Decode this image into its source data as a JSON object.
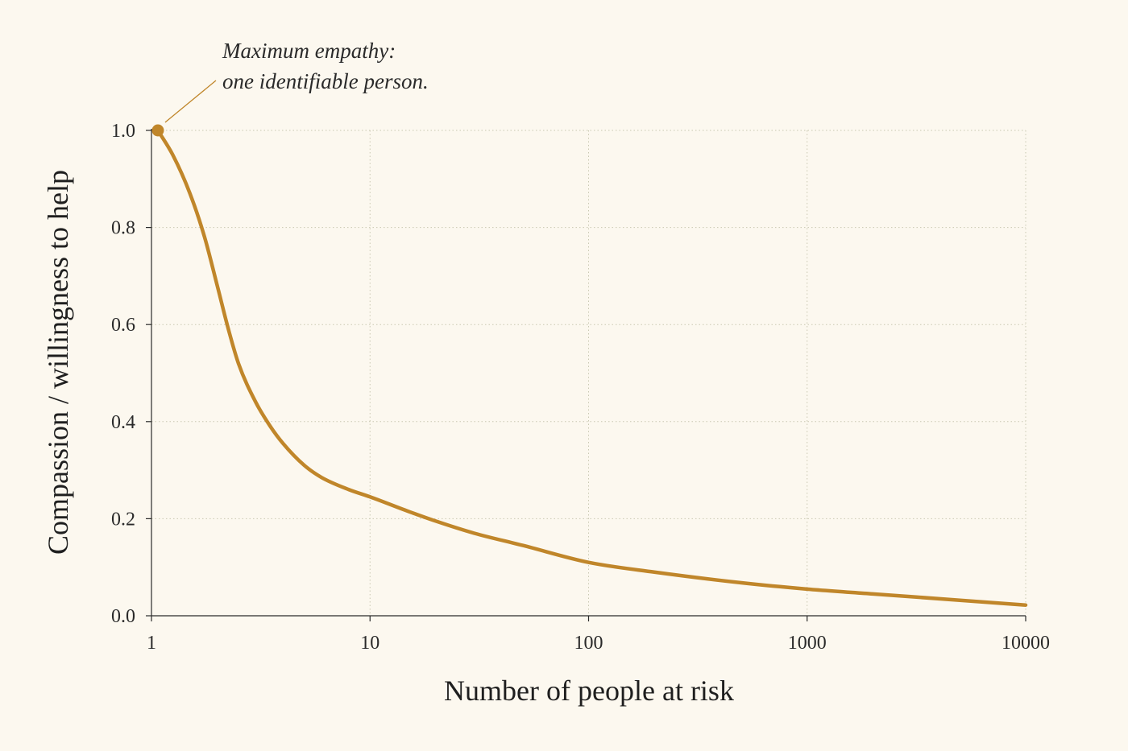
{
  "chart_data": {
    "type": "line",
    "xlabel": "Number of people at risk",
    "ylabel": "Compassion / willingness to help",
    "x_scale": "log",
    "xlim": [
      1,
      10000
    ],
    "ylim": [
      0,
      1
    ],
    "x_ticks": [
      "1",
      "10",
      "100",
      "1000",
      "10000"
    ],
    "y_ticks": [
      "0.0",
      "0.2",
      "0.4",
      "0.6",
      "0.8",
      "1.0"
    ],
    "grid": true,
    "series": [
      {
        "color": "#c0862a",
        "x": [
          1.07,
          1.25,
          1.5,
          1.75,
          2.0,
          2.25,
          2.5,
          3.0,
          3.5,
          4.0,
          5.0,
          6.0,
          8.0,
          10,
          15,
          20,
          30,
          50,
          100,
          200,
          500,
          1000,
          2000,
          5000,
          10000
        ],
        "y": [
          1.0,
          0.95,
          0.87,
          0.78,
          0.68,
          0.59,
          0.52,
          0.44,
          0.39,
          0.355,
          0.31,
          0.285,
          0.26,
          0.245,
          0.215,
          0.195,
          0.17,
          0.145,
          0.11,
          0.09,
          0.068,
          0.055,
          0.045,
          0.032,
          0.022
        ]
      }
    ],
    "annotations": [
      {
        "lines": [
          "Maximum empathy:",
          "one identifiable person."
        ],
        "x": 1.07,
        "y": 1.0
      }
    ]
  }
}
